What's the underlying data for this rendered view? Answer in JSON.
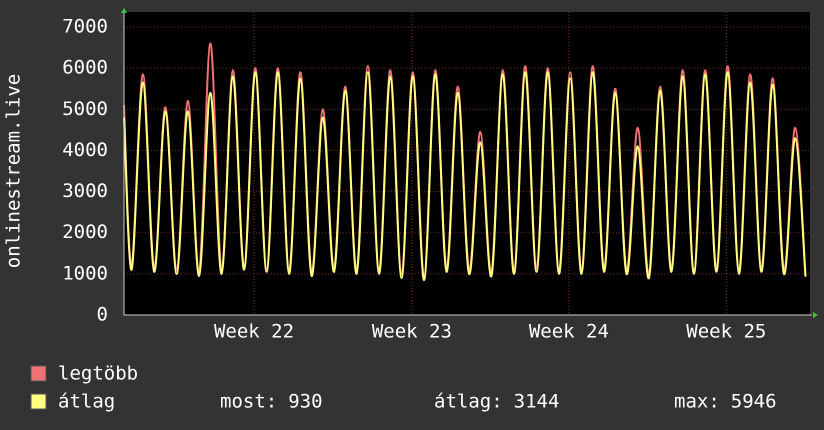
{
  "chart_data": {
    "type": "line",
    "y_axis_label": "onlinestream.live",
    "x": [
      0,
      0.34,
      0.84,
      1.34,
      1.84,
      2.34,
      2.84,
      3.34,
      3.84,
      4.34,
      4.84,
      5.34,
      5.84,
      6.34,
      6.84,
      7.34,
      7.84,
      8.34,
      8.84,
      9.34,
      9.84,
      10.34,
      10.84,
      11.34,
      11.84,
      12.34,
      12.84,
      13.34,
      13.84,
      14.34,
      14.84,
      15.34,
      15.84,
      16.34,
      16.84,
      17.34,
      17.84,
      18.34,
      18.84,
      19.34,
      19.84,
      20.34,
      20.84,
      21.34,
      21.84,
      22.34,
      22.84,
      23.34,
      23.84,
      24.34,
      24.84,
      25.34,
      25.84,
      26.34,
      26.84,
      27.34,
      27.84,
      28.34,
      28.84,
      29.34,
      29.84,
      30.3
    ],
    "series": [
      {
        "name": "legtöbb",
        "color": "#f07272",
        "values": [
          5100,
          1180,
          5850,
          1130,
          5050,
          1080,
          5200,
          1030,
          6600,
          1080,
          5950,
          1180,
          6000,
          1130,
          6000,
          1080,
          5900,
          1030,
          5000,
          1130,
          5550,
          1080,
          6050,
          1080,
          5950,
          980,
          5900,
          930,
          5950,
          1130,
          5550,
          1080,
          4450,
          1030,
          5950,
          1080,
          6050,
          1130,
          6000,
          1080,
          5900,
          1080,
          6050,
          1130,
          5500,
          1080,
          4550,
          980,
          5550,
          1130,
          5950,
          1080,
          5950,
          1130,
          6050,
          1080,
          5850,
          1130,
          5750,
          1080,
          4550,
          960
        ]
      },
      {
        "name": "átlag",
        "color": "#ffff80",
        "values": [
          4800,
          1100,
          5650,
          1050,
          4950,
          1000,
          4950,
          950,
          5400,
          1000,
          5800,
          1100,
          5900,
          1050,
          5900,
          1000,
          5750,
          950,
          4800,
          1050,
          5450,
          1000,
          5900,
          1000,
          5800,
          900,
          5800,
          850,
          5850,
          1050,
          5400,
          1000,
          4200,
          950,
          5850,
          1000,
          5900,
          1050,
          5900,
          1000,
          5750,
          1000,
          5900,
          1050,
          5400,
          1000,
          4100,
          900,
          5450,
          1050,
          5800,
          1000,
          5850,
          1050,
          5900,
          1000,
          5650,
          1050,
          5600,
          1000,
          4300,
          930
        ]
      }
    ],
    "xlim": [
      0,
      30.5
    ],
    "xticks": [
      {
        "value": 5.78,
        "label": "Week 22"
      },
      {
        "value": 12.8,
        "label": "Week 23"
      },
      {
        "value": 19.78,
        "label": "Week 24"
      },
      {
        "value": 26.78,
        "label": "Week 25"
      }
    ],
    "ylim": [
      0,
      7000
    ],
    "yticks": [
      0,
      1000,
      2000,
      3000,
      4000,
      5000,
      6000,
      7000
    ],
    "grid": true,
    "stats": [
      {
        "label": "most:",
        "value": 930
      },
      {
        "label": "átlag:",
        "value": 3144
      },
      {
        "label": "max:",
        "value": 5946
      }
    ]
  }
}
